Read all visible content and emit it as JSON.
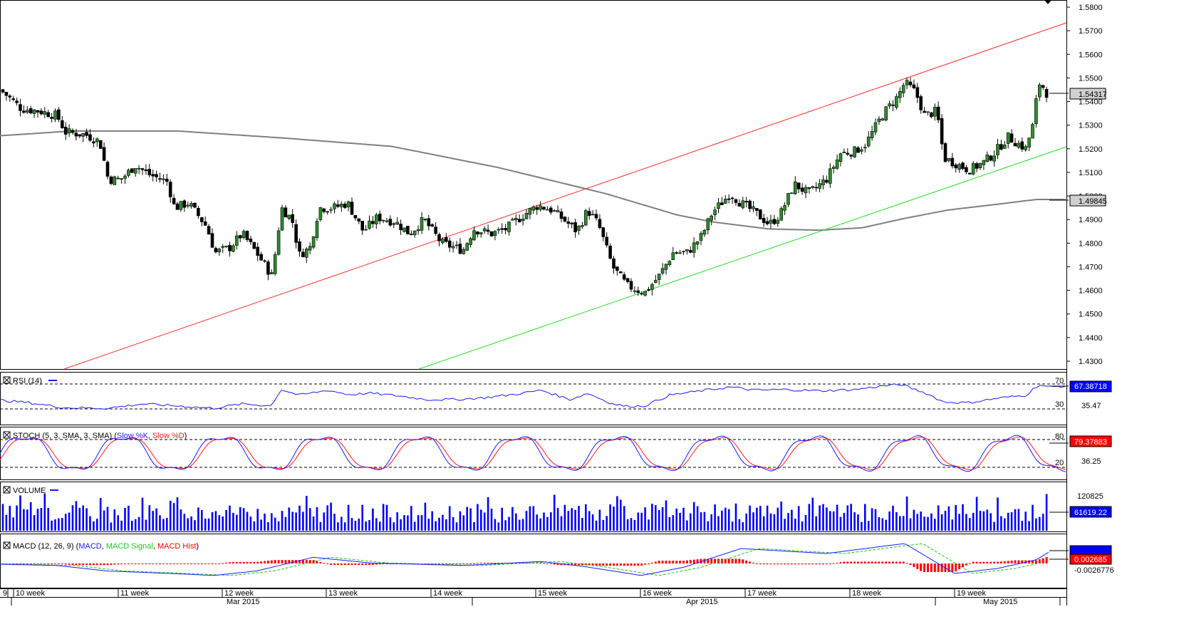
{
  "price_axis": {
    "ticks": [
      "1.5800",
      "1.5700",
      "1.5600",
      "1.5500",
      "1.5400",
      "1.5300",
      "1.5200",
      "1.5100",
      "1.5000",
      "1.4900",
      "1.4800",
      "1.4700",
      "1.4600",
      "1.4500",
      "1.4400",
      "1.4300"
    ],
    "current_label": "1.54317",
    "ma_label": "1.49845"
  },
  "indicators": {
    "rsi": {
      "title": "RSI (14)",
      "level_high": "70",
      "level_low": "30",
      "current_label": "67.38718",
      "mid_label": "35.47"
    },
    "stoch": {
      "title_prefix": "STOCH (5, 3, SMA, 3, SMA) (",
      "k_label": "Slow %K",
      "sep": ", ",
      "d_label": "Slow %D",
      "title_suffix": ")",
      "level_high": "80",
      "level_low": "20",
      "current_label": "79.37883",
      "mid_label": "36.25"
    },
    "volume": {
      "title": "VOLUME",
      "top_label": "120825",
      "current_label": "61619.22"
    },
    "macd": {
      "title_prefix": "MACD (12, 26, 9) (",
      "macd_label": "MACD",
      "sep1": ", ",
      "signal_label": "MACD Signal",
      "sep2": ", ",
      "hist_label": "MACD Hist",
      "title_suffix": ")",
      "current_label": "0.002685",
      "low_label": "-0.0026776"
    }
  },
  "time_axis": {
    "weeks": [
      "9",
      "10 week",
      "11 week",
      "12 week",
      "13 week",
      "14 week",
      "15 week",
      "16 week",
      "17 week",
      "18 week",
      "19 week"
    ],
    "months": [
      "Mar 2015",
      "Apr 2015",
      "May 2015"
    ]
  },
  "colors": {
    "up_candle": "#2e8b2e",
    "down_candle": "#000000",
    "ma": "#7f7f7f",
    "resistance_line": "#ff2a2a",
    "support_line": "#22dd22",
    "rsi_line": "#1a1aff",
    "stoch_k": "#1a1aff",
    "stoch_d": "#ff1a1a",
    "volume_bar": "#0000ff",
    "macd_line": "#1a1aff",
    "macd_signal": "#1ec81e",
    "macd_hist": "#ff0000"
  },
  "chart_data": {
    "type": "candlestick",
    "symbol_scale": "price",
    "ylim": [
      1.425,
      1.5815
    ],
    "trendlines": [
      {
        "name": "resistance",
        "from": [
          "2015-02-23",
          1.428
        ],
        "to": [
          "2015-05-09",
          1.573
        ]
      },
      {
        "name": "support",
        "from": [
          "2015-03-09",
          1.428
        ],
        "to": [
          "2015-05-09",
          1.521
        ]
      }
    ],
    "close_path": [
      [
        0,
        1.545
      ],
      [
        12,
        1.542
      ],
      [
        30,
        1.537
      ],
      [
        55,
        1.536
      ],
      [
        80,
        1.534
      ],
      [
        92,
        1.527
      ],
      [
        120,
        1.526
      ],
      [
        140,
        1.523
      ],
      [
        152,
        1.507
      ],
      [
        170,
        1.507
      ],
      [
        190,
        1.513
      ],
      [
        210,
        1.509
      ],
      [
        235,
        1.506
      ],
      [
        245,
        1.495
      ],
      [
        265,
        1.497
      ],
      [
        290,
        1.487
      ],
      [
        302,
        1.476
      ],
      [
        322,
        1.478
      ],
      [
        340,
        1.484
      ],
      [
        360,
        1.476
      ],
      [
        382,
        1.466
      ],
      [
        395,
        1.495
      ],
      [
        410,
        1.49
      ],
      [
        420,
        1.475
      ],
      [
        435,
        1.478
      ],
      [
        448,
        1.495
      ],
      [
        468,
        1.495
      ],
      [
        488,
        1.497
      ],
      [
        510,
        1.485
      ],
      [
        530,
        1.491
      ],
      [
        555,
        1.489
      ],
      [
        575,
        1.484
      ],
      [
        595,
        1.49
      ],
      [
        620,
        1.48
      ],
      [
        650,
        1.477
      ],
      [
        665,
        1.486
      ],
      [
        690,
        1.484
      ],
      [
        710,
        1.486
      ],
      [
        735,
        1.492
      ],
      [
        755,
        1.496
      ],
      [
        775,
        1.494
      ],
      [
        795,
        1.489
      ],
      [
        810,
        1.485
      ],
      [
        825,
        1.494
      ],
      [
        840,
        1.488
      ],
      [
        860,
        1.47
      ],
      [
        880,
        1.462
      ],
      [
        905,
        1.459
      ],
      [
        925,
        1.466
      ],
      [
        945,
        1.476
      ],
      [
        965,
        1.476
      ],
      [
        985,
        1.483
      ],
      [
        1000,
        1.493
      ],
      [
        1025,
        1.501
      ],
      [
        1040,
        1.497
      ],
      [
        1060,
        1.493
      ],
      [
        1080,
        1.488
      ],
      [
        1095,
        1.492
      ],
      [
        1115,
        1.505
      ],
      [
        1135,
        1.501
      ],
      [
        1160,
        1.507
      ],
      [
        1180,
        1.518
      ],
      [
        1200,
        1.519
      ],
      [
        1215,
        1.522
      ],
      [
        1240,
        1.535
      ],
      [
        1260,
        1.542
      ],
      [
        1270,
        1.548
      ],
      [
        1285,
        1.544
      ],
      [
        1298,
        1.534
      ],
      [
        1315,
        1.536
      ],
      [
        1325,
        1.516
      ],
      [
        1340,
        1.514
      ],
      [
        1360,
        1.511
      ],
      [
        1380,
        1.514
      ],
      [
        1395,
        1.518
      ],
      [
        1415,
        1.525
      ],
      [
        1440,
        1.52
      ],
      [
        1450,
        1.53
      ],
      [
        1458,
        1.548
      ],
      [
        1465,
        1.546
      ],
      [
        1472,
        1.542
      ]
    ],
    "ma_path": [
      [
        0,
        1.5255
      ],
      [
        100,
        1.5275
      ],
      [
        250,
        1.5275
      ],
      [
        400,
        1.5245
      ],
      [
        550,
        1.521
      ],
      [
        700,
        1.512
      ],
      [
        850,
        1.501
      ],
      [
        950,
        1.492
      ],
      [
        1000,
        1.489
      ],
      [
        1080,
        1.486
      ],
      [
        1150,
        1.4855
      ],
      [
        1210,
        1.4865
      ],
      [
        1270,
        1.4905
      ],
      [
        1330,
        1.494
      ],
      [
        1400,
        1.4965
      ],
      [
        1455,
        1.4985
      ],
      [
        1500,
        1.4985
      ]
    ],
    "rsi_path": [
      [
        0,
        44
      ],
      [
        40,
        40
      ],
      [
        90,
        32
      ],
      [
        150,
        31
      ],
      [
        200,
        38
      ],
      [
        260,
        34
      ],
      [
        300,
        31
      ],
      [
        340,
        38
      ],
      [
        380,
        35
      ],
      [
        395,
        61
      ],
      [
        420,
        52
      ],
      [
        440,
        56
      ],
      [
        460,
        60
      ],
      [
        490,
        53
      ],
      [
        520,
        55
      ],
      [
        560,
        51
      ],
      [
        600,
        45
      ],
      [
        640,
        45
      ],
      [
        680,
        48
      ],
      [
        720,
        53
      ],
      [
        760,
        60
      ],
      [
        800,
        45
      ],
      [
        825,
        55
      ],
      [
        860,
        38
      ],
      [
        880,
        34
      ],
      [
        905,
        35
      ],
      [
        940,
        52
      ],
      [
        990,
        60
      ],
      [
        1025,
        65
      ],
      [
        1060,
        60
      ],
      [
        1100,
        61
      ],
      [
        1150,
        59
      ],
      [
        1200,
        61
      ],
      [
        1240,
        67
      ],
      [
        1265,
        69
      ],
      [
        1300,
        55
      ],
      [
        1325,
        41
      ],
      [
        1360,
        40
      ],
      [
        1400,
        47
      ],
      [
        1440,
        52
      ],
      [
        1458,
        69
      ],
      [
        1472,
        65
      ],
      [
        1500,
        67
      ]
    ],
    "stoch_k_cycle": "oscillating 20-80",
    "macd_path": [
      [
        0,
        -0.0003
      ],
      [
        80,
        -0.0008
      ],
      [
        150,
        -0.003
      ],
      [
        240,
        -0.004
      ],
      [
        300,
        -0.0048
      ],
      [
        360,
        -0.003
      ],
      [
        440,
        0.0025
      ],
      [
        520,
        0.0002
      ],
      [
        650,
        -0.0008
      ],
      [
        760,
        0.0008
      ],
      [
        820,
        -0.0012
      ],
      [
        900,
        -0.0048
      ],
      [
        960,
        -0.0015
      ],
      [
        1040,
        0.006
      ],
      [
        1160,
        0.004
      ],
      [
        1270,
        0.008
      ],
      [
        1340,
        -0.004
      ],
      [
        1400,
        -0.002
      ],
      [
        1455,
        0.0015
      ],
      [
        1472,
        0.0045
      ]
    ],
    "volume_max": 120825
  }
}
